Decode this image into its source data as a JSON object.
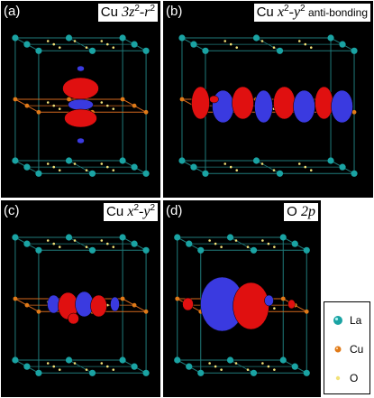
{
  "panels": [
    {
      "label": "(a)",
      "title_prefix": "Cu ",
      "title_main": "3z",
      "title_sup": "2",
      "title_main2": "-r",
      "title_sup2": "2",
      "title_suffix": "",
      "orbital": "z2"
    },
    {
      "label": "(b)",
      "title_prefix": "Cu ",
      "title_main": "x",
      "title_sup": "2",
      "title_main2": "-y",
      "title_sup2": "2",
      "title_suffix": " anti-bonding",
      "orbital": "anti"
    },
    {
      "label": "(c)",
      "title_prefix": "Cu ",
      "title_main": "x",
      "title_sup": "2",
      "title_main2": "-y",
      "title_sup2": "2",
      "title_suffix": "",
      "orbital": "x2y2"
    },
    {
      "label": "(d)",
      "title_prefix": "O ",
      "title_main": "2p",
      "title_sup": "",
      "title_main2": "",
      "title_sup2": "",
      "title_suffix": "",
      "orbital": "o2p"
    }
  ],
  "legend": [
    {
      "name": "La",
      "color": "#1aa3a3",
      "size": "large"
    },
    {
      "name": "Cu",
      "color": "#e07a18",
      "size": "medium"
    },
    {
      "name": "O",
      "color": "#f2e27a",
      "size": "small"
    }
  ],
  "colors": {
    "background": "#000000",
    "cell_edge": "#1f7a7a",
    "cuo_plane": "#d2691e",
    "lobe_positive": "#e01010",
    "lobe_negative": "#3a3ae0"
  }
}
